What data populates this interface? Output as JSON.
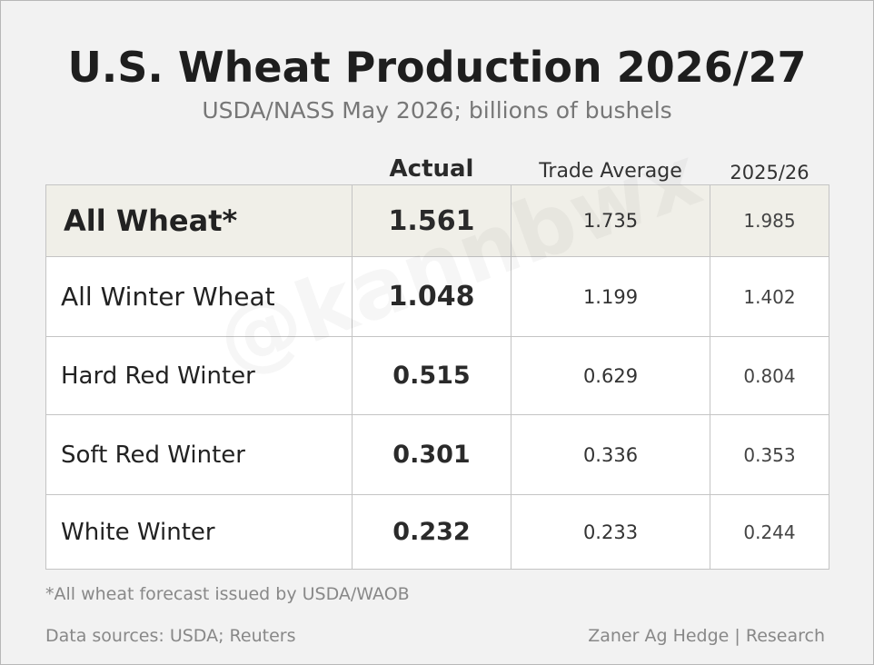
{
  "chart_data": {
    "type": "table",
    "title": "U.S. Wheat Production 2026/27",
    "subtitle": "USDA/NASS May 2026; billions of bushels",
    "columns": [
      "Actual",
      "Trade Average",
      "2025/26"
    ],
    "rows": [
      {
        "name": "All Wheat*",
        "actual": "1.561",
        "trade_average": "1.735",
        "prior": "1.985"
      },
      {
        "name": "All Winter Wheat",
        "actual": "1.048",
        "trade_average": "1.199",
        "prior": "1.402"
      },
      {
        "name": "Hard Red Winter",
        "actual": "0.515",
        "trade_average": "0.629",
        "prior": "0.804"
      },
      {
        "name": "Soft Red Winter",
        "actual": "0.301",
        "trade_average": "0.336",
        "prior": "0.353"
      },
      {
        "name": "White Winter",
        "actual": "0.232",
        "trade_average": "0.233",
        "prior": "0.244"
      }
    ],
    "footnote": "*All wheat forecast issued by USDA/WAOB",
    "sources": "Data sources: USDA; Reuters",
    "credit": "Zaner Ag Hedge | Research",
    "watermark": "@kannbwx",
    "colors": {
      "background": "#f2f2f2",
      "header_row": "#f0efe8",
      "cell": "#ffffff",
      "grid": "#c4c4c4"
    }
  }
}
